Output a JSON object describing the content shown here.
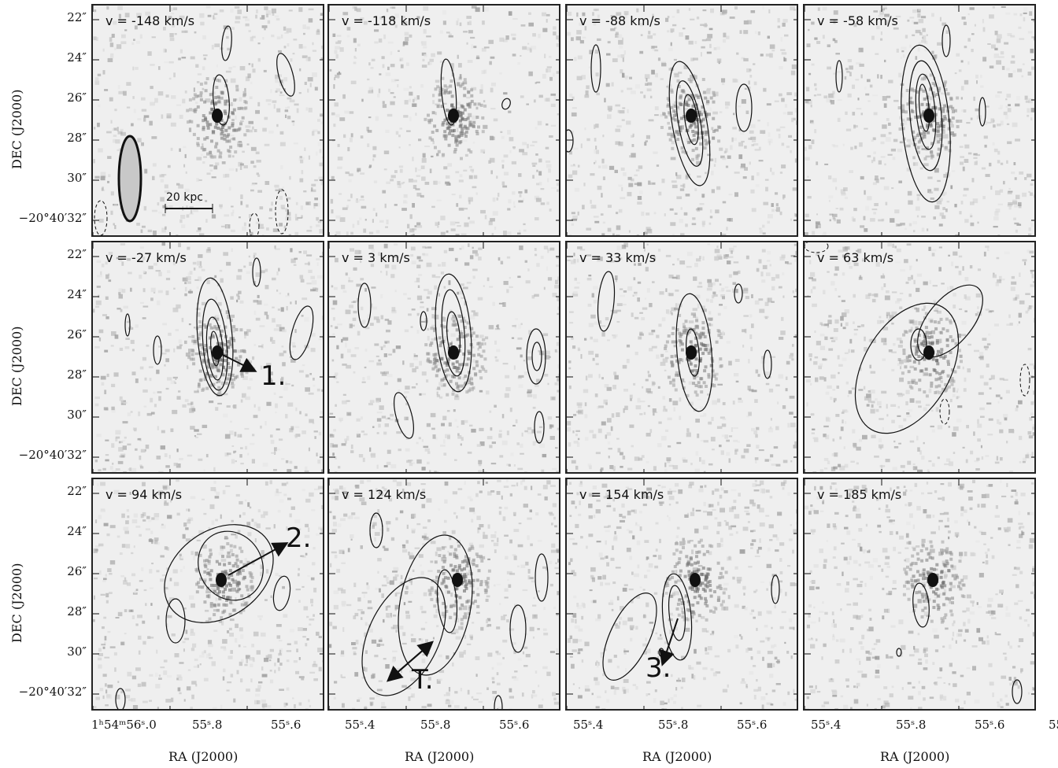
{
  "panels": [
    {
      "id": "p1",
      "velocity": "v = -148 km/s"
    },
    {
      "id": "p2",
      "velocity": "v = -118 km/s"
    },
    {
      "id": "p3",
      "velocity": "v = -88 km/s"
    },
    {
      "id": "p4",
      "velocity": "v = -58 km/s"
    },
    {
      "id": "p5",
      "velocity": "v = -27 km/s"
    },
    {
      "id": "p6",
      "velocity": "v = 3 km/s"
    },
    {
      "id": "p7",
      "velocity": "v = 33 km/s"
    },
    {
      "id": "p8",
      "velocity": "v = 63 km/s"
    },
    {
      "id": "p9",
      "velocity": "v = 94 km/s"
    },
    {
      "id": "p10",
      "velocity": "v = 124 km/s"
    },
    {
      "id": "p11",
      "velocity": "v = 154 km/s"
    },
    {
      "id": "p12",
      "velocity": "v = 185 km/s"
    }
  ],
  "axes": {
    "dec_title": "DEC (J2000)",
    "ra_title": "RA (J2000)",
    "dec_ticks": [
      "22″",
      "24″",
      "26″",
      "28″",
      "30″",
      "−20°40′32″"
    ],
    "ra_ticks_first": [
      "1ʰ54ᵐ56ˢ.0",
      "55ˢ.8",
      "55ˢ.6",
      "55ˢ.4"
    ],
    "ra_ticks_other": [
      "55ˢ.8",
      "55ˢ.6",
      "55ˢ.4"
    ]
  },
  "scale_bar": {
    "label": "20 kpc"
  },
  "annotations": {
    "a1": "1.",
    "a2": "2.",
    "a3": "3.",
    "aT": "T."
  }
}
